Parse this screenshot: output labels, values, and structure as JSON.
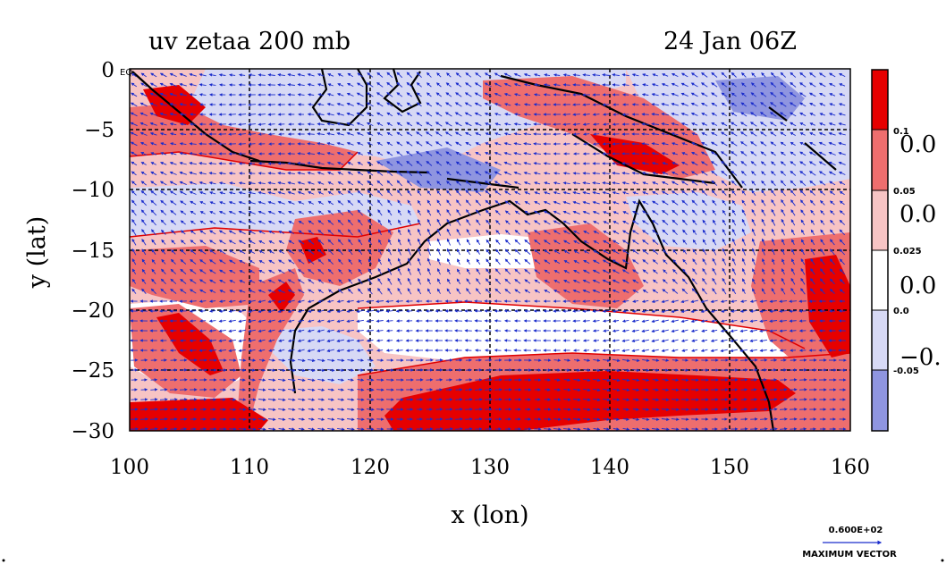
{
  "header": {
    "title": "uv zetaa 200 mb",
    "datetime": "24 Jan 06Z"
  },
  "axes": {
    "xlabel": "x (lon)",
    "ylabel": "y (lat)",
    "x_ticks": [
      "100",
      "110",
      "120",
      "130",
      "140",
      "150",
      "160"
    ],
    "y_ticks": [
      "0",
      "−5",
      "−10",
      "−15",
      "−20",
      "−25",
      "−30"
    ],
    "xlim": [
      100,
      160
    ],
    "ylim": [
      -30,
      0
    ],
    "grid": true
  },
  "corner_label": "EQ",
  "colorbar": {
    "small_labels": [
      "0.1",
      "0.05",
      "0.025",
      "0.0",
      "-0.05"
    ],
    "large_labels": [
      "0.0",
      "0.0",
      "0.0",
      "−0."
    ],
    "colors": [
      "#e60000",
      "#ee6e6e",
      "#f7c4c4",
      "#ffffff",
      "#d7d9f5",
      "#8f95e0"
    ]
  },
  "vector_key": {
    "value": "0.600E+02",
    "label": "MAXIMUM VECTOR"
  },
  "palette": {
    "strong_pos": "#e60000",
    "mid_pos": "#ee6e6e",
    "weak_pos": "#f7c4c4",
    "weak_neg": "#d7d9f5",
    "strong_neg": "#8f95e0",
    "vector": "#1a2ccc",
    "coast": "#000000",
    "contour": "#e00000"
  }
}
